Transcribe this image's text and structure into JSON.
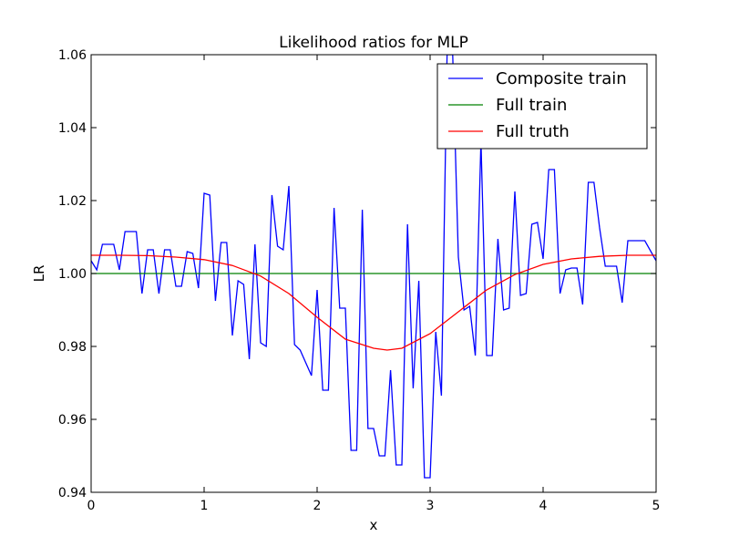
{
  "chart_data": {
    "type": "line",
    "title": "Likelihood ratios for MLP",
    "xlabel": "x",
    "ylabel": "LR",
    "xlim": [
      0,
      5
    ],
    "ylim": [
      0.94,
      1.06
    ],
    "xticks": [
      "0",
      "1",
      "2",
      "3",
      "4",
      "5"
    ],
    "yticks": [
      "0.94",
      "0.96",
      "0.98",
      "1.00",
      "1.02",
      "1.04",
      "1.06"
    ],
    "grid": false,
    "legend_position": "top-right",
    "series": [
      {
        "name": "Composite train",
        "color": "#0000ff",
        "points": [
          [
            0.0,
            1.0035
          ],
          [
            0.05,
            1.001
          ],
          [
            0.1,
            1.008
          ],
          [
            0.15,
            1.008
          ],
          [
            0.2,
            1.008
          ],
          [
            0.25,
            1.001
          ],
          [
            0.3,
            1.0115
          ],
          [
            0.35,
            1.0115
          ],
          [
            0.4,
            1.0115
          ],
          [
            0.45,
            0.9945
          ],
          [
            0.5,
            1.0065
          ],
          [
            0.55,
            1.0065
          ],
          [
            0.6,
            0.9945
          ],
          [
            0.65,
            1.0065
          ],
          [
            0.7,
            1.0065
          ],
          [
            0.75,
            0.9965
          ],
          [
            0.8,
            0.9965
          ],
          [
            0.85,
            1.006
          ],
          [
            0.9,
            1.0055
          ],
          [
            0.95,
            0.996
          ],
          [
            1.0,
            1.022
          ],
          [
            1.05,
            1.0215
          ],
          [
            1.1,
            0.9925
          ],
          [
            1.15,
            1.0085
          ],
          [
            1.2,
            1.0085
          ],
          [
            1.25,
            0.983
          ],
          [
            1.3,
            0.998
          ],
          [
            1.35,
            0.997
          ],
          [
            1.4,
            0.9765
          ],
          [
            1.45,
            1.008
          ],
          [
            1.5,
            0.981
          ],
          [
            1.55,
            0.98
          ],
          [
            1.6,
            1.0215
          ],
          [
            1.65,
            1.0075
          ],
          [
            1.7,
            1.0065
          ],
          [
            1.75,
            1.024
          ],
          [
            1.8,
            0.9805
          ],
          [
            1.85,
            0.979
          ],
          [
            1.95,
            0.972
          ],
          [
            2.0,
            0.9955
          ],
          [
            2.05,
            0.968
          ],
          [
            2.1,
            0.968
          ],
          [
            2.15,
            1.018
          ],
          [
            2.2,
            0.9905
          ],
          [
            2.25,
            0.9905
          ],
          [
            2.3,
            0.9515
          ],
          [
            2.35,
            0.9515
          ],
          [
            2.4,
            1.0175
          ],
          [
            2.45,
            0.9575
          ],
          [
            2.5,
            0.9575
          ],
          [
            2.55,
            0.95
          ],
          [
            2.6,
            0.95
          ],
          [
            2.65,
            0.9735
          ],
          [
            2.7,
            0.9475
          ],
          [
            2.75,
            0.9475
          ],
          [
            2.8,
            1.0135
          ],
          [
            2.85,
            0.9685
          ],
          [
            2.9,
            0.998
          ],
          [
            2.95,
            0.944
          ],
          [
            3.0,
            0.944
          ],
          [
            3.05,
            0.984
          ],
          [
            3.1,
            0.9665
          ],
          [
            3.15,
            1.06
          ],
          [
            3.2,
            1.06
          ],
          [
            3.25,
            1.0045
          ],
          [
            3.3,
            0.99
          ],
          [
            3.35,
            0.991
          ],
          [
            3.4,
            0.9775
          ],
          [
            3.45,
            1.0365
          ],
          [
            3.5,
            0.9775
          ],
          [
            3.55,
            0.9775
          ],
          [
            3.6,
            1.0095
          ],
          [
            3.65,
            0.99
          ],
          [
            3.7,
            0.9905
          ],
          [
            3.75,
            1.0225
          ],
          [
            3.8,
            0.994
          ],
          [
            3.85,
            0.9945
          ],
          [
            3.9,
            1.0135
          ],
          [
            3.95,
            1.014
          ],
          [
            4.0,
            1.004
          ],
          [
            4.05,
            1.0285
          ],
          [
            4.1,
            1.0285
          ],
          [
            4.15,
            0.9945
          ],
          [
            4.2,
            1.001
          ],
          [
            4.25,
            1.0015
          ],
          [
            4.3,
            1.0015
          ],
          [
            4.35,
            0.9915
          ],
          [
            4.4,
            1.025
          ],
          [
            4.45,
            1.025
          ],
          [
            4.5,
            1.0125
          ],
          [
            4.55,
            1.002
          ],
          [
            4.6,
            1.002
          ],
          [
            4.65,
            1.002
          ],
          [
            4.7,
            0.992
          ],
          [
            4.75,
            1.009
          ],
          [
            4.8,
            1.009
          ],
          [
            4.85,
            1.009
          ],
          [
            4.9,
            1.009
          ],
          [
            5.0,
            1.0035
          ]
        ]
      },
      {
        "name": "Full train",
        "color": "#008000",
        "points": [
          [
            0,
            1.0
          ],
          [
            5,
            1.0
          ]
        ]
      },
      {
        "name": "Full truth",
        "color": "#ff0000",
        "points": [
          [
            0.0,
            1.005
          ],
          [
            0.25,
            1.005
          ],
          [
            0.5,
            1.0049
          ],
          [
            0.75,
            1.0045
          ],
          [
            1.0,
            1.0038
          ],
          [
            1.25,
            1.0022
          ],
          [
            1.5,
            0.9993
          ],
          [
            1.75,
            0.9945
          ],
          [
            2.0,
            0.988
          ],
          [
            2.25,
            0.982
          ],
          [
            2.5,
            0.9795
          ],
          [
            2.62,
            0.979
          ],
          [
            2.75,
            0.9795
          ],
          [
            3.0,
            0.9835
          ],
          [
            3.25,
            0.9895
          ],
          [
            3.5,
            0.9955
          ],
          [
            3.75,
            0.9997
          ],
          [
            4.0,
            1.0025
          ],
          [
            4.25,
            1.004
          ],
          [
            4.5,
            1.0047
          ],
          [
            4.75,
            1.005
          ],
          [
            5.0,
            1.005
          ]
        ]
      }
    ]
  }
}
